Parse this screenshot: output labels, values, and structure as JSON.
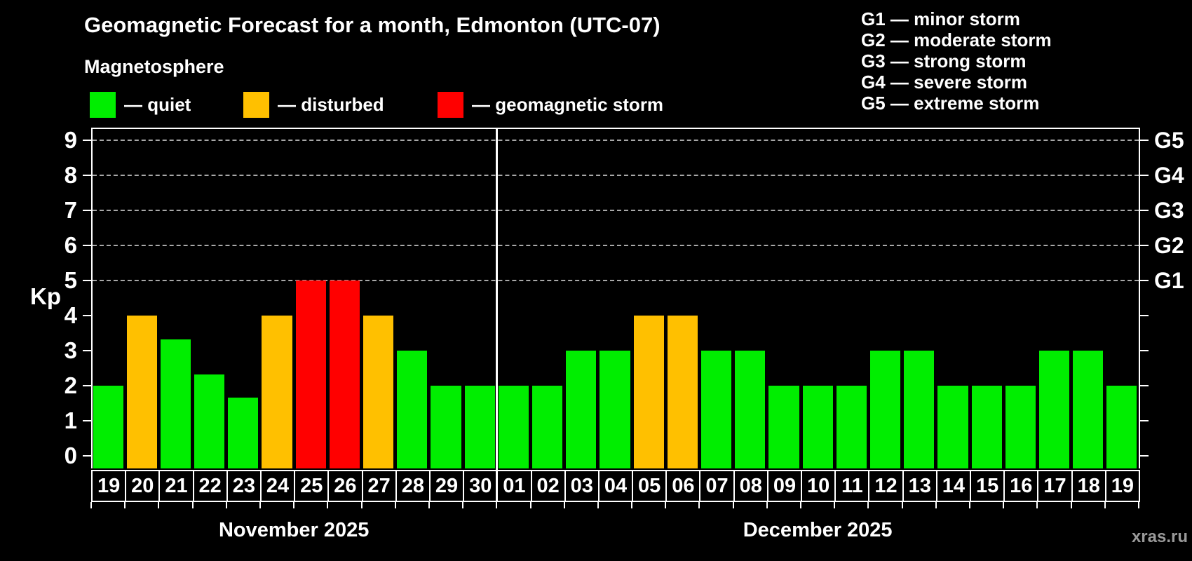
{
  "page": {
    "background": "#000000",
    "watermark": "xras.ru"
  },
  "header": {
    "title": "Geomagnetic Forecast for a month, Edmonton (UTC-07)",
    "subtitle": "Magnetosphere"
  },
  "colors": {
    "quiet": "#00ee00",
    "disturbed": "#ffc000",
    "storm": "#ff0000",
    "grid": "#a8a8a8",
    "axis": "#ffffff",
    "watermark": "#9a9a9a"
  },
  "legend": {
    "items": [
      {
        "status": "quiet",
        "label": "— quiet"
      },
      {
        "status": "disturbed",
        "label": "— disturbed"
      },
      {
        "status": "storm",
        "label": "— geomagnetic storm"
      }
    ]
  },
  "g_legend": [
    "G1 — minor storm",
    "G2 — moderate storm",
    "G3 — strong storm",
    "G4 — severe storm",
    "G5 — extreme storm"
  ],
  "chart_data": {
    "type": "bar",
    "title": "Geomagnetic Forecast for a month, Edmonton (UTC-07)",
    "ylabel": "Kp",
    "ylim": [
      -0.36,
      9.36
    ],
    "y_ticks": [
      0,
      1,
      2,
      3,
      4,
      5,
      6,
      7,
      8,
      9
    ],
    "grid": "horizontal dashed lines at Kp 5-9 only",
    "legend_position": "top-left",
    "right_axis": [
      {
        "kp": 5,
        "label": "G1"
      },
      {
        "kp": 6,
        "label": "G2"
      },
      {
        "kp": 7,
        "label": "G3"
      },
      {
        "kp": 8,
        "label": "G4"
      },
      {
        "kp": 9,
        "label": "G5"
      }
    ],
    "months": [
      {
        "label": "November 2025",
        "bars": [
          {
            "day": "19",
            "kp": 2,
            "status": "quiet"
          },
          {
            "day": "20",
            "kp": 4,
            "status": "disturbed"
          },
          {
            "day": "21",
            "kp": 3.33,
            "status": "quiet"
          },
          {
            "day": "22",
            "kp": 2.33,
            "status": "quiet"
          },
          {
            "day": "23",
            "kp": 1.67,
            "status": "quiet"
          },
          {
            "day": "24",
            "kp": 4,
            "status": "disturbed"
          },
          {
            "day": "25",
            "kp": 5,
            "status": "storm"
          },
          {
            "day": "26",
            "kp": 5,
            "status": "storm"
          },
          {
            "day": "27",
            "kp": 4,
            "status": "disturbed"
          },
          {
            "day": "28",
            "kp": 3,
            "status": "quiet"
          },
          {
            "day": "29",
            "kp": 2,
            "status": "quiet"
          },
          {
            "day": "30",
            "kp": 2,
            "status": "quiet"
          }
        ]
      },
      {
        "label": "December 2025",
        "bars": [
          {
            "day": "01",
            "kp": 2,
            "status": "quiet"
          },
          {
            "day": "02",
            "kp": 2,
            "status": "quiet"
          },
          {
            "day": "03",
            "kp": 3,
            "status": "quiet"
          },
          {
            "day": "04",
            "kp": 3,
            "status": "quiet"
          },
          {
            "day": "05",
            "kp": 4,
            "status": "disturbed"
          },
          {
            "day": "06",
            "kp": 4,
            "status": "disturbed"
          },
          {
            "day": "07",
            "kp": 3,
            "status": "quiet"
          },
          {
            "day": "08",
            "kp": 3,
            "status": "quiet"
          },
          {
            "day": "09",
            "kp": 2,
            "status": "quiet"
          },
          {
            "day": "10",
            "kp": 2,
            "status": "quiet"
          },
          {
            "day": "11",
            "kp": 2,
            "status": "quiet"
          },
          {
            "day": "12",
            "kp": 3,
            "status": "quiet"
          },
          {
            "day": "13",
            "kp": 3,
            "status": "quiet"
          },
          {
            "day": "14",
            "kp": 2,
            "status": "quiet"
          },
          {
            "day": "15",
            "kp": 2,
            "status": "quiet"
          },
          {
            "day": "16",
            "kp": 2,
            "status": "quiet"
          },
          {
            "day": "17",
            "kp": 3,
            "status": "quiet"
          },
          {
            "day": "18",
            "kp": 3,
            "status": "quiet"
          },
          {
            "day": "19",
            "kp": 2,
            "status": "quiet"
          }
        ]
      }
    ]
  }
}
